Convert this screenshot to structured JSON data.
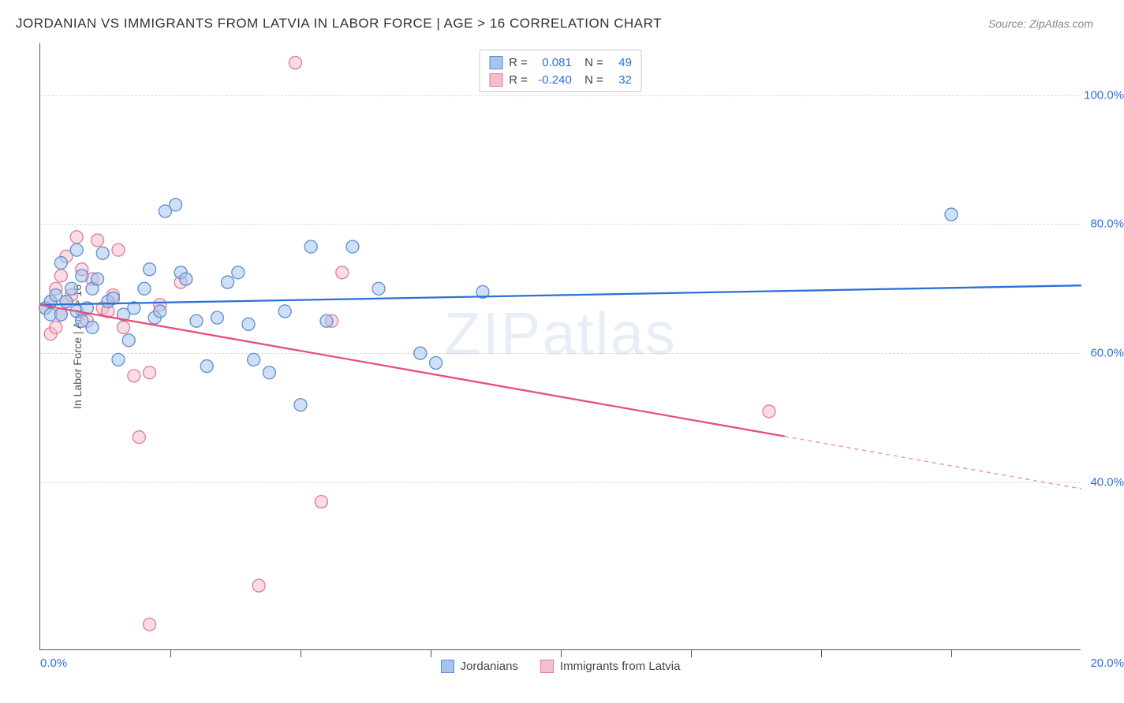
{
  "header": {
    "title": "JORDANIAN VS IMMIGRANTS FROM LATVIA IN LABOR FORCE | AGE > 16 CORRELATION CHART",
    "source": "Source: ZipAtlas.com"
  },
  "chart": {
    "type": "scatter",
    "ylabel": "In Labor Force | Age > 16",
    "xlim": [
      0,
      20
    ],
    "ylim": [
      14,
      108
    ],
    "x_ticks": [
      0,
      20
    ],
    "x_tick_labels": [
      "0.0%",
      "20.0%"
    ],
    "x_minor_ticks": [
      2.5,
      5,
      7.5,
      10,
      12.5,
      15,
      17.5
    ],
    "y_ticks": [
      40,
      60,
      80,
      100
    ],
    "y_tick_labels": [
      "40.0%",
      "60.0%",
      "80.0%",
      "100.0%"
    ],
    "y_tick_color": "#2b71d9",
    "x_tick_color": "#2b71d9",
    "grid_color": "#dddddd",
    "background_color": "#ffffff",
    "marker_radius": 8,
    "marker_opacity": 0.55,
    "marker_stroke_width": 1.3,
    "line_width": 2.3,
    "watermark": "ZIPatlas",
    "series": [
      {
        "name": "Jordanians",
        "color_fill": "#a7c4ec",
        "color_stroke": "#5b8ed2",
        "line_color": "#2b71d9",
        "R": "0.081",
        "N": "49",
        "trend": {
          "x1": 0,
          "y1": 67.5,
          "x2": 20,
          "y2": 70.5,
          "dashed_from": null
        },
        "points": [
          [
            0.1,
            67
          ],
          [
            0.2,
            68
          ],
          [
            0.2,
            66
          ],
          [
            0.3,
            69
          ],
          [
            0.4,
            66
          ],
          [
            0.4,
            74
          ],
          [
            0.5,
            68
          ],
          [
            0.6,
            70
          ],
          [
            0.7,
            66.5
          ],
          [
            0.7,
            76
          ],
          [
            0.8,
            65
          ],
          [
            0.8,
            72
          ],
          [
            0.9,
            67
          ],
          [
            1.0,
            70
          ],
          [
            1.0,
            64
          ],
          [
            1.1,
            71.5
          ],
          [
            1.2,
            75.5
          ],
          [
            1.3,
            68
          ],
          [
            1.4,
            68.5
          ],
          [
            1.5,
            59
          ],
          [
            1.6,
            66
          ],
          [
            1.7,
            62
          ],
          [
            1.8,
            67
          ],
          [
            2.0,
            70
          ],
          [
            2.1,
            73
          ],
          [
            2.2,
            65.5
          ],
          [
            2.3,
            66.5
          ],
          [
            2.4,
            82
          ],
          [
            2.6,
            83
          ],
          [
            2.7,
            72.5
          ],
          [
            2.8,
            71.5
          ],
          [
            3.0,
            65
          ],
          [
            3.2,
            58
          ],
          [
            3.4,
            65.5
          ],
          [
            3.6,
            71
          ],
          [
            3.8,
            72.5
          ],
          [
            4.0,
            64.5
          ],
          [
            4.1,
            59
          ],
          [
            4.4,
            57
          ],
          [
            4.7,
            66.5
          ],
          [
            5.0,
            52
          ],
          [
            5.2,
            76.5
          ],
          [
            5.5,
            65
          ],
          [
            6.0,
            76.5
          ],
          [
            6.5,
            70
          ],
          [
            7.3,
            60
          ],
          [
            7.6,
            58.5
          ],
          [
            8.5,
            69.5
          ],
          [
            17.5,
            81.5
          ]
        ]
      },
      {
        "name": "Immigrants from Latvia",
        "color_fill": "#f4bfcd",
        "color_stroke": "#e17a97",
        "line_color": "#e84f7a",
        "R": "-0.240",
        "N": "32",
        "trend": {
          "x1": 0,
          "y1": 67.5,
          "x2": 20,
          "y2": 39,
          "dashed_from": 14.3
        },
        "points": [
          [
            0.1,
            67
          ],
          [
            0.2,
            68
          ],
          [
            0.2,
            63
          ],
          [
            0.3,
            70
          ],
          [
            0.3,
            64
          ],
          [
            0.4,
            66
          ],
          [
            0.4,
            72
          ],
          [
            0.5,
            68
          ],
          [
            0.5,
            75
          ],
          [
            0.6,
            69
          ],
          [
            0.7,
            78
          ],
          [
            0.8,
            73
          ],
          [
            0.9,
            65
          ],
          [
            1.0,
            71.5
          ],
          [
            1.1,
            77.5
          ],
          [
            1.2,
            67
          ],
          [
            1.3,
            66.5
          ],
          [
            1.4,
            69
          ],
          [
            1.5,
            76
          ],
          [
            1.6,
            64
          ],
          [
            1.8,
            56.5
          ],
          [
            1.9,
            47
          ],
          [
            2.1,
            57
          ],
          [
            2.3,
            67.5
          ],
          [
            2.7,
            71
          ],
          [
            4.2,
            24
          ],
          [
            4.9,
            105
          ],
          [
            5.4,
            37
          ],
          [
            5.6,
            65
          ],
          [
            5.8,
            72.5
          ],
          [
            14.0,
            51
          ],
          [
            2.1,
            18
          ]
        ]
      }
    ],
    "bottom_legend": [
      {
        "label": "Jordanians",
        "fill": "#a7c4ec",
        "stroke": "#5b8ed2"
      },
      {
        "label": "Immigrants from Latvia",
        "fill": "#f4bfcd",
        "stroke": "#e17a97"
      }
    ]
  }
}
